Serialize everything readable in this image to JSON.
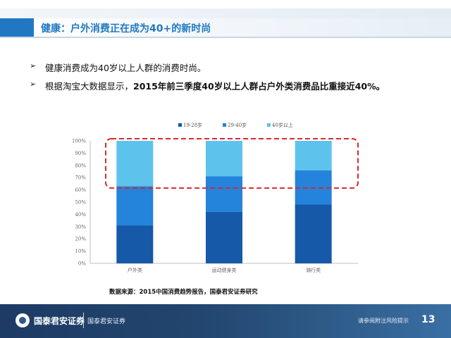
{
  "header": {
    "title": "健康：户外消费正在成为40+的新时尚"
  },
  "bullets": [
    {
      "text": "健康消费成为40岁以上人群的消费时尚。"
    },
    {
      "prefix": "根据淘宝大数据显示，",
      "strong": "2015年前三季度40岁以上人群占户外类消费品比重接近40%。"
    }
  ],
  "chart_data": {
    "type": "bar",
    "stacked": true,
    "categories": [
      "户外类",
      "运动健身类",
      "骑行类"
    ],
    "series": [
      {
        "name": "19-28岁",
        "color": "#1559a8",
        "values": [
          31,
          42,
          48
        ]
      },
      {
        "name": "29-40岁",
        "color": "#2483db",
        "values": [
          32,
          29,
          28
        ]
      },
      {
        "name": "40岁以上",
        "color": "#5ec3ec",
        "values": [
          37,
          29,
          24
        ]
      }
    ],
    "yticks": [
      "0%",
      "10%",
      "20%",
      "30%",
      "40%",
      "50%",
      "60%",
      "70%",
      "80%",
      "90%",
      "100%"
    ],
    "ylim": [
      0,
      100
    ],
    "legend_position": "top-center",
    "highlight_color": "#d9282f"
  },
  "source": "数据来源：2015中国消费趋势报告，国泰君安证券研究",
  "footer": {
    "logo": "国泰君安证券",
    "company": "国泰君安证券",
    "disclaimer": "请参阅附注风险提示",
    "page": "13"
  }
}
